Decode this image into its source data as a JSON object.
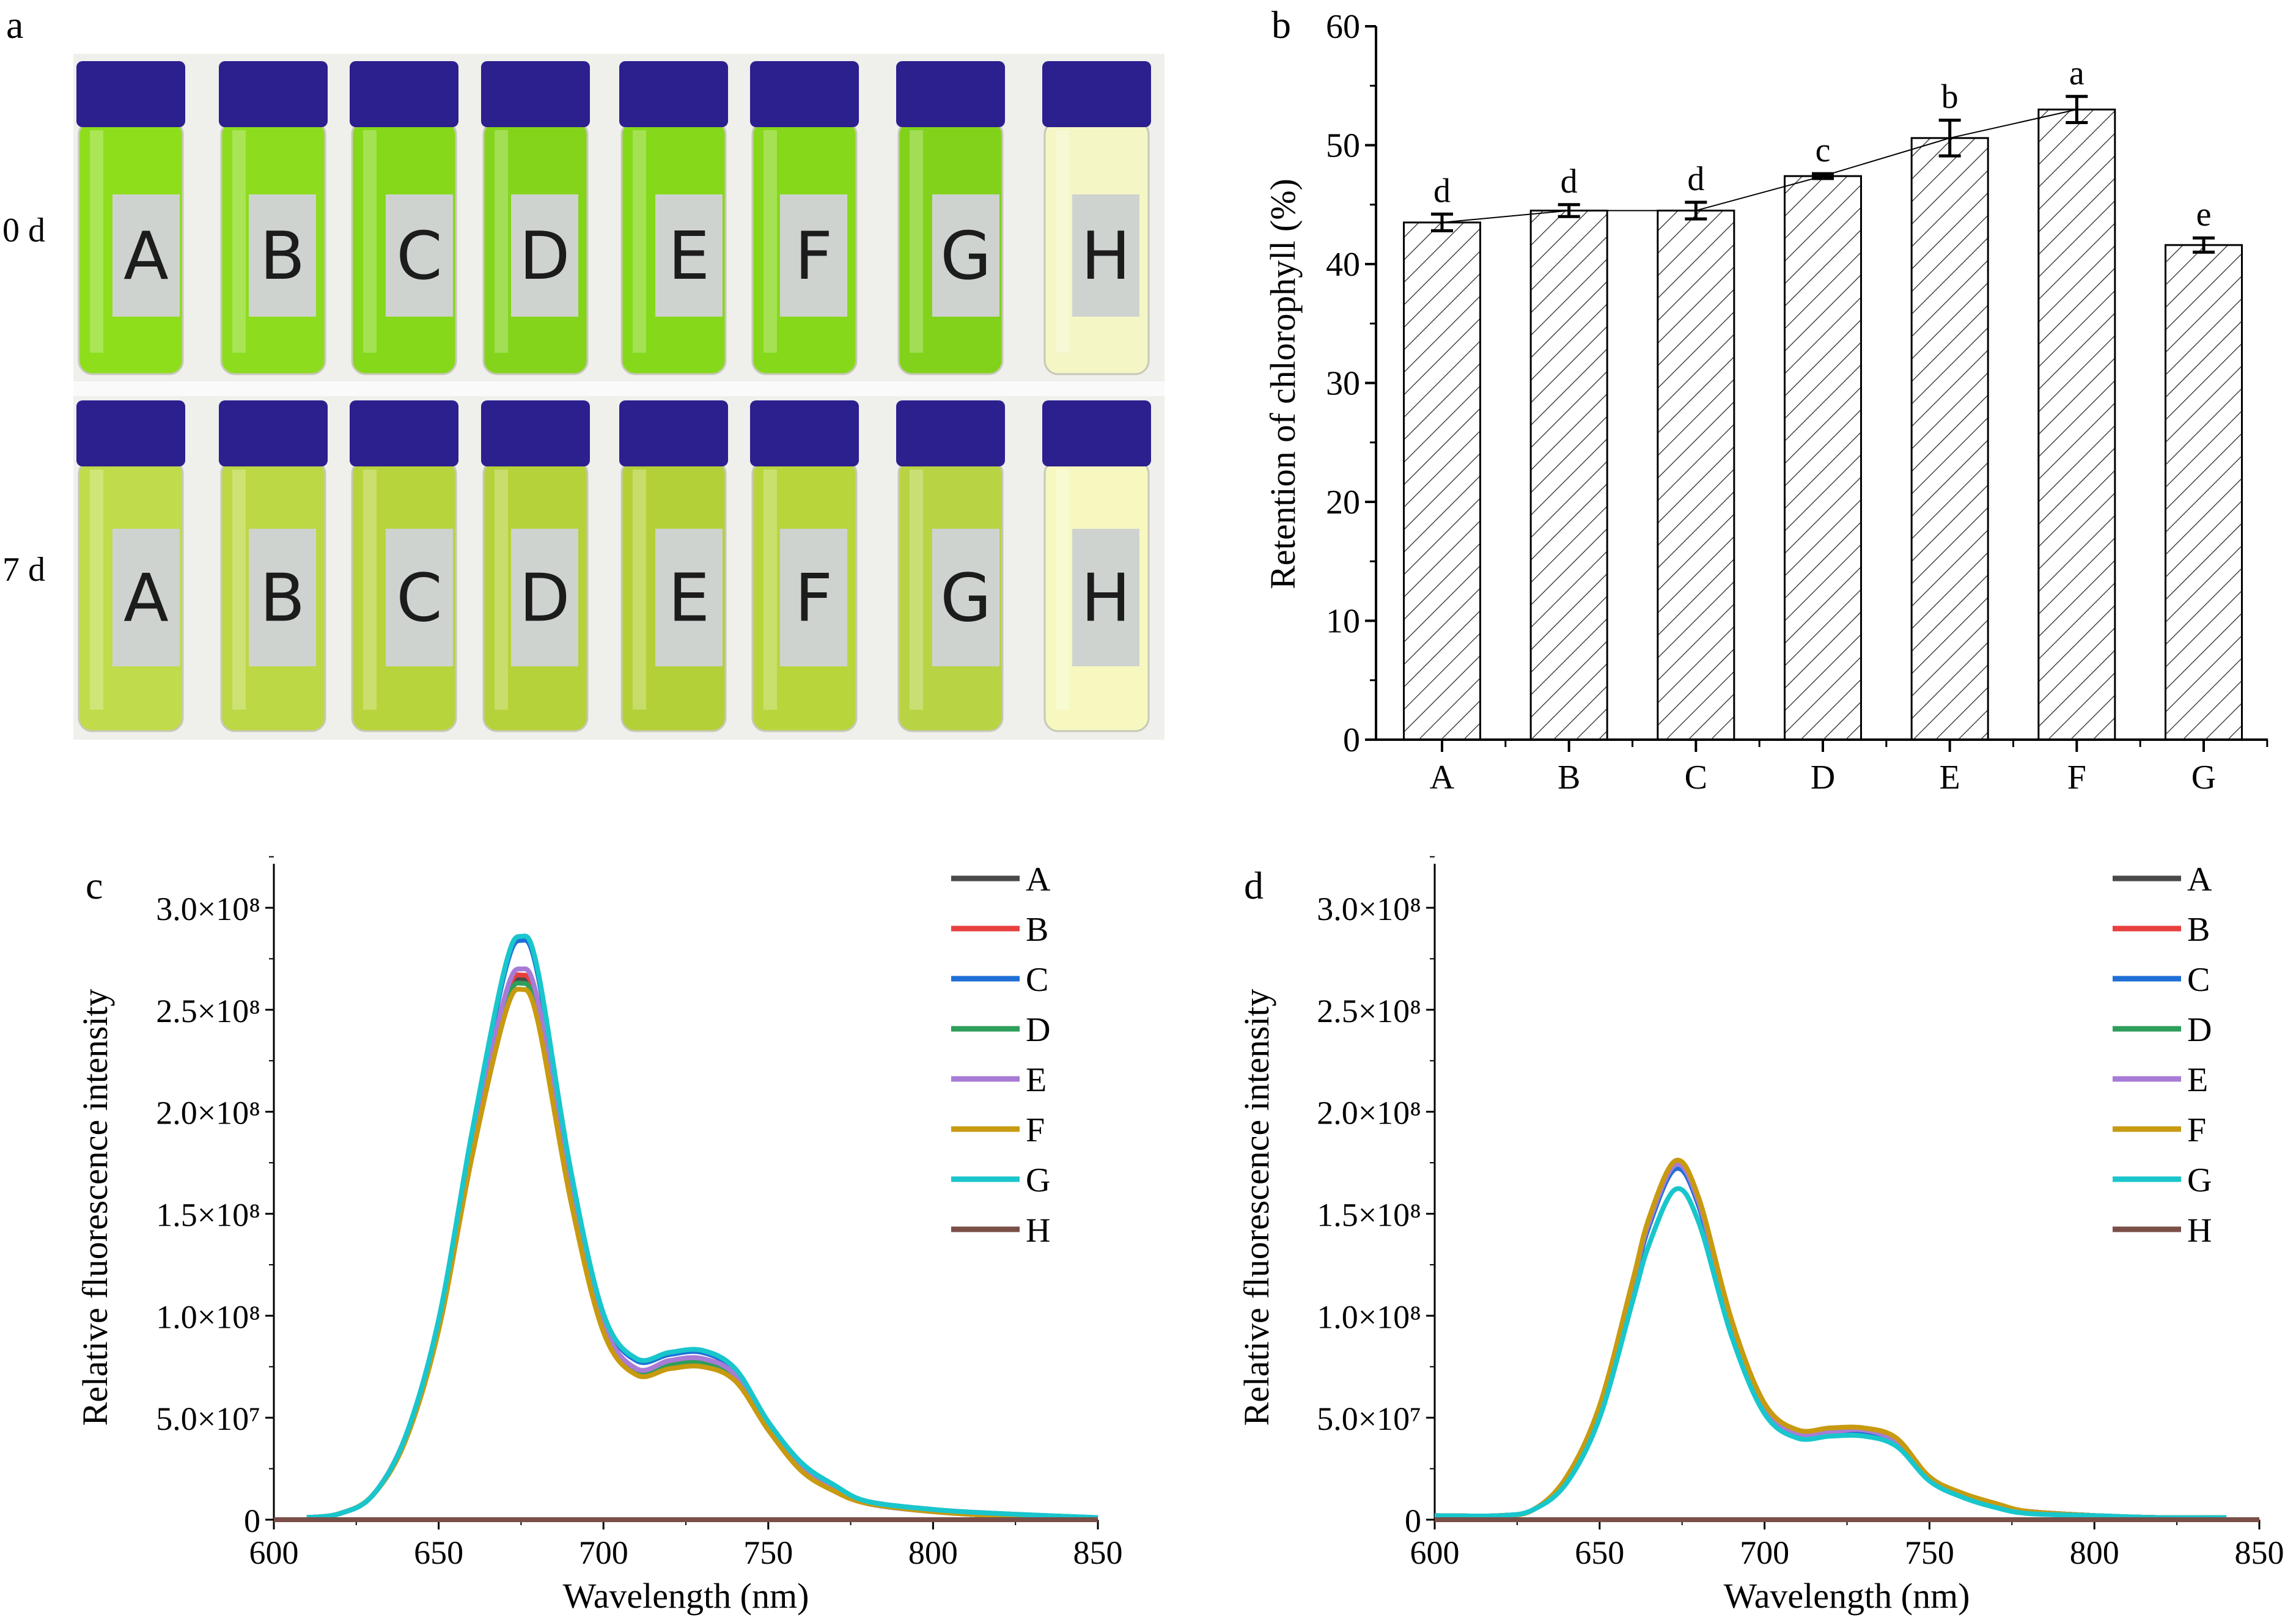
{
  "panel_a": {
    "letter": "a",
    "rows": [
      {
        "label": "0 d",
        "liquid_colors": [
          "#8ede1c",
          "#8ddc1e",
          "#86d81a",
          "#84d41c",
          "#86d81a",
          "#86d81a",
          "#82d21c",
          "#f4f6c6"
        ]
      },
      {
        "label": "7 d",
        "liquid_colors": [
          "#c0dc4a",
          "#bcd844",
          "#b8d43c",
          "#b6d23a",
          "#b4d038",
          "#b8d63c",
          "#b8d444",
          "#f6f8c0"
        ]
      }
    ],
    "vial_labels": [
      "A",
      "B",
      "C",
      "D",
      "E",
      "F",
      "G",
      "H"
    ],
    "cap_color": "#2c1f8e"
  },
  "chart_data": [
    {
      "panel": "b",
      "type": "bar",
      "categories": [
        "A",
        "B",
        "C",
        "D",
        "E",
        "F",
        "G"
      ],
      "values": [
        43.5,
        44.5,
        44.5,
        47.4,
        50.6,
        53.0,
        41.6
      ],
      "errors": [
        0.7,
        0.5,
        0.7,
        0.2,
        1.5,
        1.1,
        0.6
      ],
      "significance": [
        "d",
        "d",
        "d",
        "c",
        "b",
        "a",
        "e"
      ],
      "trend_line": "A-F",
      "xlabel": "",
      "ylabel": "Retention of chlorophyll (%)",
      "ylim": [
        0,
        60
      ],
      "yticks": [
        "0",
        "10",
        "20",
        "30",
        "40",
        "50",
        "60"
      ],
      "fill": "hatched",
      "grid": false
    },
    {
      "panel": "c",
      "type": "line",
      "xlabel": "Wavelength (nm)",
      "ylabel": "Relative fluorescence intensity",
      "xlim": [
        600,
        850
      ],
      "ylim": [
        0,
        325000000.0
      ],
      "xticks": [
        "600",
        "650",
        "700",
        "750",
        "800",
        "850"
      ],
      "yticks": [
        "0",
        "5.0×10⁷",
        "1.0×10⁸",
        "1.5×10⁸",
        "2.0×10⁸",
        "2.5×10⁸",
        "3.0×10⁸"
      ],
      "legend": "top-right",
      "grid": false,
      "series": [
        {
          "name": "A",
          "color": "#4a4a4a",
          "x": [
            610,
            620,
            630,
            640,
            650,
            660,
            670,
            675,
            680,
            690,
            700,
            710,
            720,
            730,
            740,
            750,
            760,
            770,
            780,
            800,
            820,
            850
          ],
          "y": [
            1000000.0,
            3000000.0,
            12000000.0,
            40000000.0,
            95000000.0,
            180000000.0,
            252000000.0,
            265000000.0,
            250000000.0,
            160000000.0,
            95000000.0,
            74000000.0,
            77000000.0,
            78000000.0,
            70000000.0,
            45000000.0,
            25000000.0,
            15000000.0,
            8000000.0,
            4000000.0,
            2000000.0,
            1000000.0
          ]
        },
        {
          "name": "B",
          "color": "#e8403f",
          "x": [
            610,
            620,
            630,
            640,
            650,
            660,
            670,
            675,
            680,
            690,
            700,
            710,
            720,
            730,
            740,
            750,
            760,
            770,
            780,
            800,
            820,
            850
          ],
          "y": [
            1000000.0,
            3000000.0,
            12000000.0,
            40000000.0,
            95000000.0,
            181000000.0,
            254000000.0,
            267000000.0,
            252000000.0,
            161000000.0,
            95000000.0,
            73000000.0,
            76000000.0,
            77000000.0,
            69000000.0,
            45000000.0,
            25000000.0,
            15000000.0,
            8000000.0,
            4000000.0,
            2000000.0,
            1000000.0
          ]
        },
        {
          "name": "C",
          "color": "#1f6fd6",
          "x": [
            610,
            620,
            630,
            640,
            650,
            660,
            670,
            675,
            680,
            690,
            700,
            710,
            720,
            730,
            740,
            750,
            760,
            770,
            780,
            800,
            820,
            850
          ],
          "y": [
            1000000.0,
            3000000.0,
            12000000.0,
            41000000.0,
            98000000.0,
            188000000.0,
            268000000.0,
            284000000.0,
            268000000.0,
            170000000.0,
            100000000.0,
            78000000.0,
            81000000.0,
            82000000.0,
            73000000.0,
            47000000.0,
            27000000.0,
            16000000.0,
            9000000.0,
            5000000.0,
            3000000.0,
            1000000.0
          ]
        },
        {
          "name": "D",
          "color": "#2e9e5b",
          "x": [
            610,
            620,
            630,
            640,
            650,
            660,
            670,
            675,
            680,
            690,
            700,
            710,
            720,
            730,
            740,
            750,
            760,
            770,
            780,
            800,
            820,
            850
          ],
          "y": [
            1000000.0,
            3000000.0,
            12000000.0,
            40000000.0,
            94000000.0,
            179000000.0,
            250000000.0,
            263000000.0,
            248000000.0,
            159000000.0,
            94000000.0,
            73000000.0,
            76000000.0,
            77000000.0,
            69000000.0,
            44000000.0,
            25000000.0,
            15000000.0,
            8000000.0,
            4000000.0,
            2000000.0,
            1000000.0
          ]
        },
        {
          "name": "E",
          "color": "#a87bd6",
          "x": [
            610,
            620,
            630,
            640,
            650,
            660,
            670,
            675,
            680,
            690,
            700,
            710,
            720,
            730,
            740,
            750,
            760,
            770,
            780,
            800,
            820,
            850
          ],
          "y": [
            1000000.0,
            3000000.0,
            12000000.0,
            41000000.0,
            96000000.0,
            183000000.0,
            256000000.0,
            270000000.0,
            255000000.0,
            163000000.0,
            96000000.0,
            74000000.0,
            78000000.0,
            79000000.0,
            71000000.0,
            45000000.0,
            25000000.0,
            15000000.0,
            8000000.0,
            4000000.0,
            2000000.0,
            1000000.0
          ]
        },
        {
          "name": "F",
          "color": "#c89a10",
          "x": [
            610,
            620,
            630,
            640,
            650,
            660,
            670,
            675,
            680,
            690,
            700,
            710,
            720,
            730,
            740,
            750,
            760,
            770,
            780,
            800,
            820,
            850
          ],
          "y": [
            1000000.0,
            3000000.0,
            12000000.0,
            39000000.0,
            93000000.0,
            177000000.0,
            247000000.0,
            260000000.0,
            245000000.0,
            157000000.0,
            92000000.0,
            71000000.0,
            74000000.0,
            75000000.0,
            68000000.0,
            44000000.0,
            24000000.0,
            14000000.0,
            8000000.0,
            4000000.0,
            2000000.0,
            1000000.0
          ]
        },
        {
          "name": "G",
          "color": "#19c6cc",
          "x": [
            610,
            620,
            630,
            640,
            650,
            660,
            670,
            675,
            680,
            690,
            700,
            710,
            720,
            730,
            740,
            750,
            760,
            770,
            780,
            800,
            820,
            850
          ],
          "y": [
            1000000.0,
            3000000.0,
            12000000.0,
            41000000.0,
            98000000.0,
            189000000.0,
            270000000.0,
            286000000.0,
            270000000.0,
            172000000.0,
            101000000.0,
            79000000.0,
            82000000.0,
            83000000.0,
            74000000.0,
            48000000.0,
            28000000.0,
            17000000.0,
            9000000.0,
            5000000.0,
            3000000.0,
            1000000.0
          ]
        },
        {
          "name": "H",
          "color": "#7a4f48",
          "x": [
            600,
            850
          ],
          "y": [
            0,
            0
          ]
        }
      ]
    },
    {
      "panel": "d",
      "type": "line",
      "xlabel": "Wavelength (nm)",
      "ylabel": "Relative fluorescence intensity",
      "xlim": [
        600,
        850
      ],
      "ylim": [
        0,
        325000000.0
      ],
      "xticks": [
        "600",
        "650",
        "700",
        "750",
        "800",
        "850"
      ],
      "yticks": [
        "0",
        "5.0×10⁷",
        "1.0×10⁸",
        "1.5×10⁸",
        "2.0×10⁸",
        "2.5×10⁸",
        "3.0×10⁸"
      ],
      "legend": "top-right",
      "grid": false,
      "series": [
        {
          "name": "A",
          "color": "#4a4a4a",
          "x": [
            600,
            620,
            630,
            640,
            650,
            660,
            665,
            673,
            680,
            690,
            700,
            710,
            720,
            730,
            740,
            750,
            760,
            770,
            780,
            800,
            820,
            840
          ],
          "y": [
            2000000.0,
            2000000.0,
            5000000.0,
            20000000.0,
            55000000.0,
            115000000.0,
            145000000.0,
            173000000.0,
            155000000.0,
            95000000.0,
            55000000.0,
            42000000.0,
            43000000.0,
            43000000.0,
            38000000.0,
            20000000.0,
            12000000.0,
            7000000.0,
            4000000.0,
            2000000.0,
            1000000.0,
            1000000.0
          ]
        },
        {
          "name": "B",
          "color": "#e8403f",
          "x": [
            600,
            620,
            630,
            640,
            650,
            660,
            665,
            673,
            680,
            690,
            700,
            710,
            720,
            730,
            740,
            750,
            760,
            770,
            780,
            800,
            820,
            840
          ],
          "y": [
            2000000.0,
            2000000.0,
            5000000.0,
            20000000.0,
            55000000.0,
            116000000.0,
            146000000.0,
            174000000.0,
            156000000.0,
            96000000.0,
            55000000.0,
            42000000.0,
            43000000.0,
            44000000.0,
            38000000.0,
            20000000.0,
            12000000.0,
            7000000.0,
            4000000.0,
            2000000.0,
            1000000.0,
            1000000.0
          ]
        },
        {
          "name": "C",
          "color": "#1f6fd6",
          "x": [
            600,
            620,
            630,
            640,
            650,
            660,
            665,
            673,
            680,
            690,
            700,
            710,
            720,
            730,
            740,
            750,
            760,
            770,
            780,
            800,
            820,
            840
          ],
          "y": [
            2000000.0,
            2000000.0,
            5000000.0,
            20000000.0,
            54000000.0,
            114000000.0,
            144000000.0,
            172000000.0,
            154000000.0,
            94000000.0,
            54000000.0,
            41000000.0,
            42000000.0,
            43000000.0,
            37000000.0,
            20000000.0,
            12000000.0,
            7000000.0,
            4000000.0,
            2000000.0,
            1000000.0,
            1000000.0
          ]
        },
        {
          "name": "D",
          "color": "#2e9e5b",
          "x": [
            600,
            620,
            630,
            640,
            650,
            660,
            665,
            673,
            680,
            690,
            700,
            710,
            720,
            730,
            740,
            750,
            760,
            770,
            780,
            800,
            820,
            840
          ],
          "y": [
            2000000.0,
            2000000.0,
            5000000.0,
            20000000.0,
            55000000.0,
            116000000.0,
            147000000.0,
            175000000.0,
            157000000.0,
            96000000.0,
            56000000.0,
            43000000.0,
            44000000.0,
            44000000.0,
            39000000.0,
            21000000.0,
            12000000.0,
            7000000.0,
            4000000.0,
            2000000.0,
            1000000.0,
            1000000.0
          ]
        },
        {
          "name": "E",
          "color": "#a87bd6",
          "x": [
            600,
            620,
            630,
            640,
            650,
            660,
            665,
            673,
            680,
            690,
            700,
            710,
            720,
            730,
            740,
            750,
            760,
            770,
            780,
            800,
            820,
            840
          ],
          "y": [
            2000000.0,
            2000000.0,
            5000000.0,
            20000000.0,
            55000000.0,
            116000000.0,
            146000000.0,
            174000000.0,
            156000000.0,
            96000000.0,
            55000000.0,
            42000000.0,
            43000000.0,
            44000000.0,
            38000000.0,
            20000000.0,
            12000000.0,
            7000000.0,
            4000000.0,
            2000000.0,
            1000000.0,
            1000000.0
          ]
        },
        {
          "name": "F",
          "color": "#c89a10",
          "x": [
            600,
            620,
            630,
            640,
            650,
            660,
            665,
            673,
            680,
            690,
            700,
            710,
            720,
            730,
            740,
            750,
            760,
            770,
            780,
            800,
            820,
            840
          ],
          "y": [
            2000000.0,
            2000000.0,
            5000000.0,
            21000000.0,
            56000000.0,
            117000000.0,
            148000000.0,
            176000000.0,
            158000000.0,
            98000000.0,
            57000000.0,
            44000000.0,
            45000000.0,
            45000000.0,
            40000000.0,
            21000000.0,
            13000000.0,
            8000000.0,
            4000000.0,
            2000000.0,
            1000000.0,
            1000000.0
          ]
        },
        {
          "name": "G",
          "color": "#19c6cc",
          "x": [
            600,
            620,
            630,
            640,
            650,
            660,
            665,
            673,
            680,
            690,
            700,
            710,
            720,
            730,
            740,
            750,
            760,
            770,
            780,
            800,
            820,
            840
          ],
          "y": [
            2000000.0,
            2000000.0,
            5000000.0,
            18000000.0,
            50000000.0,
            107000000.0,
            135000000.0,
            162000000.0,
            146000000.0,
            90000000.0,
            52000000.0,
            40000000.0,
            41000000.0,
            41000000.0,
            36000000.0,
            19000000.0,
            11000000.0,
            6000000.0,
            3000000.0,
            2000000.0,
            1000000.0,
            1000000.0
          ]
        },
        {
          "name": "H",
          "color": "#7a4f48",
          "x": [
            600,
            850
          ],
          "y": [
            0,
            0
          ]
        }
      ]
    }
  ],
  "panel_letters": {
    "b": "b",
    "c": "c",
    "d": "d"
  }
}
